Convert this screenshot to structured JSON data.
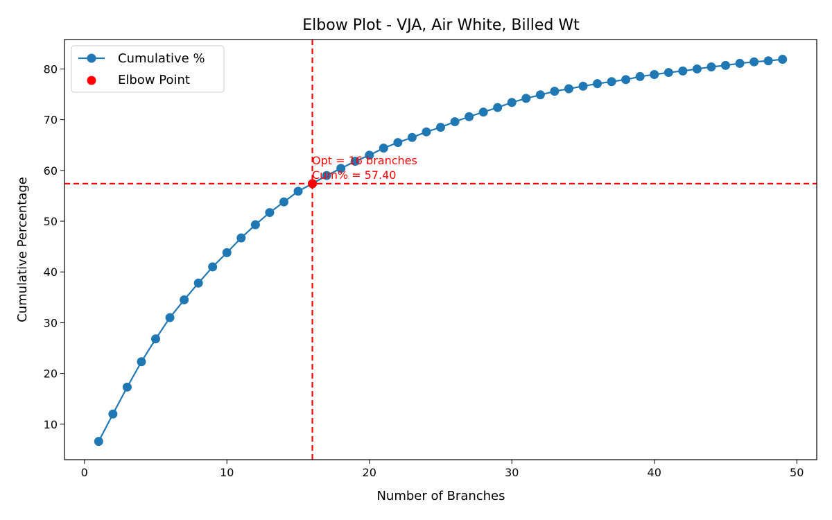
{
  "chart_data": {
    "type": "line",
    "title": "Elbow Plot - VJA, Air White, Billed Wt",
    "xlabel": "Number of Branches",
    "ylabel": "Cumulative Percentage",
    "xlim": [
      -1.4,
      51.4
    ],
    "ylim": [
      3.0,
      85.8
    ],
    "xticks": [
      0,
      10,
      20,
      30,
      40,
      50
    ],
    "yticks": [
      10,
      20,
      30,
      40,
      50,
      60,
      70,
      80
    ],
    "grid": false,
    "legend_position": "top-left",
    "series": [
      {
        "name": "Cumulative %",
        "color": "#1f77b4",
        "x": [
          1,
          2,
          3,
          4,
          5,
          6,
          7,
          8,
          9,
          10,
          11,
          12,
          13,
          14,
          15,
          16,
          17,
          18,
          19,
          20,
          21,
          22,
          23,
          24,
          25,
          26,
          27,
          28,
          29,
          30,
          31,
          32,
          33,
          34,
          35,
          36,
          37,
          38,
          39,
          40,
          41,
          42,
          43,
          44,
          45,
          46,
          47,
          48,
          49
        ],
        "y": [
          6.6,
          12.0,
          17.3,
          22.3,
          26.8,
          31.0,
          34.5,
          37.8,
          41.0,
          43.8,
          46.7,
          49.3,
          51.7,
          53.8,
          55.9,
          57.4,
          59.0,
          60.4,
          61.8,
          63.0,
          64.4,
          65.5,
          66.5,
          67.6,
          68.5,
          69.6,
          70.6,
          71.5,
          72.4,
          73.4,
          74.2,
          74.9,
          75.6,
          76.1,
          76.6,
          77.1,
          77.5,
          77.9,
          78.5,
          78.9,
          79.3,
          79.6,
          80.0,
          80.4,
          80.7,
          81.1,
          81.4,
          81.6,
          81.9
        ]
      }
    ],
    "elbow_point": {
      "name": "Elbow Point",
      "x": 16,
      "y": 57.4,
      "color": "#ff0000",
      "annotation_line1": "Opt = 16 branches",
      "annotation_line2": "Cum% = 57.40"
    }
  }
}
